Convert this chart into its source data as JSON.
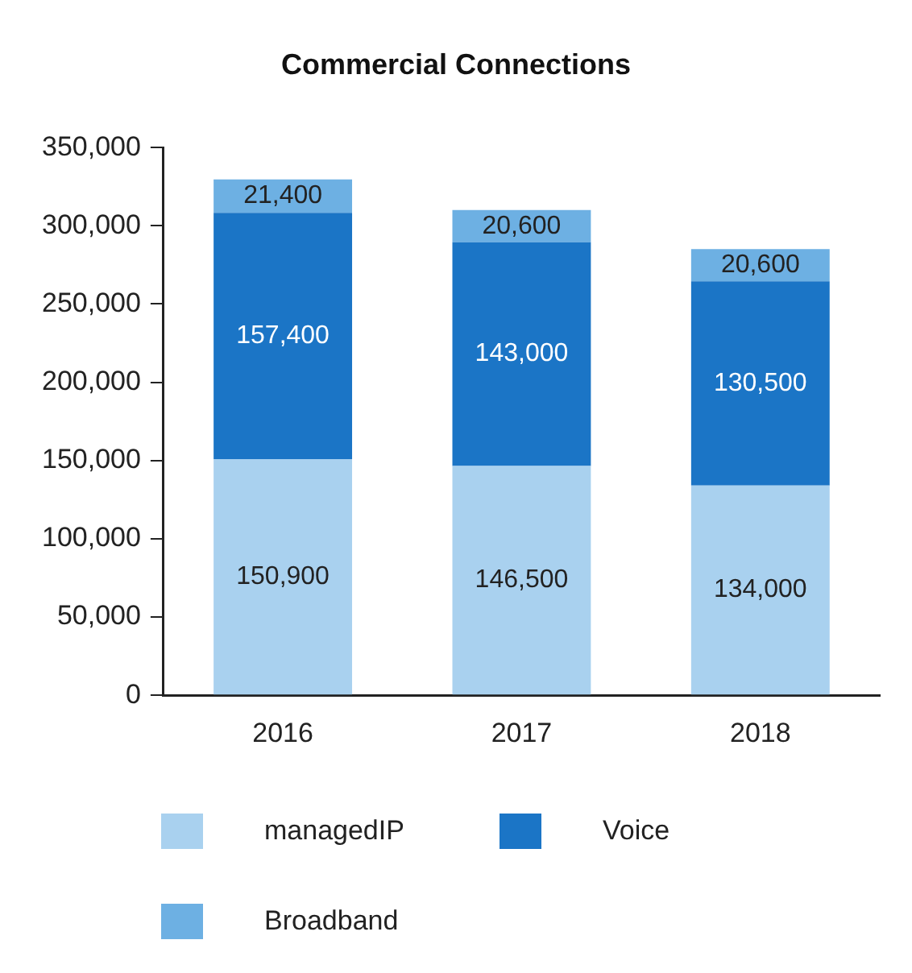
{
  "chart_data": {
    "type": "bar",
    "title": "Commercial Connections",
    "categories": [
      "2016",
      "2017",
      "2018"
    ],
    "stacked": true,
    "legend": "bottom",
    "grid": false,
    "series": [
      {
        "name": "managedIP",
        "color": "#a9d1ef",
        "values": [
          150900,
          146500,
          134000
        ],
        "value_labels": [
          "150,900",
          "146,500",
          "134,000"
        ]
      },
      {
        "name": "Voice",
        "color": "#1b75c6",
        "values": [
          157400,
          143000,
          130500
        ],
        "value_labels": [
          "157,400",
          "143,000",
          "130,500"
        ]
      },
      {
        "name": "Broadband",
        "color": "#6db0e3",
        "values": [
          21400,
          20600,
          20600
        ],
        "value_labels": [
          "21,400",
          "20,600",
          "20,600"
        ]
      }
    ],
    "ylim": [
      0,
      350000
    ],
    "yticks": [
      {
        "value": 0,
        "label": "0"
      },
      {
        "value": 50000,
        "label": "50,000"
      },
      {
        "value": 100000,
        "label": "100,000"
      },
      {
        "value": 150000,
        "label": "150,000"
      },
      {
        "value": 200000,
        "label": "200,000"
      },
      {
        "value": 250000,
        "label": "250,000"
      },
      {
        "value": 300000,
        "label": "300,000"
      },
      {
        "value": 350000,
        "label": "350,000"
      }
    ]
  }
}
